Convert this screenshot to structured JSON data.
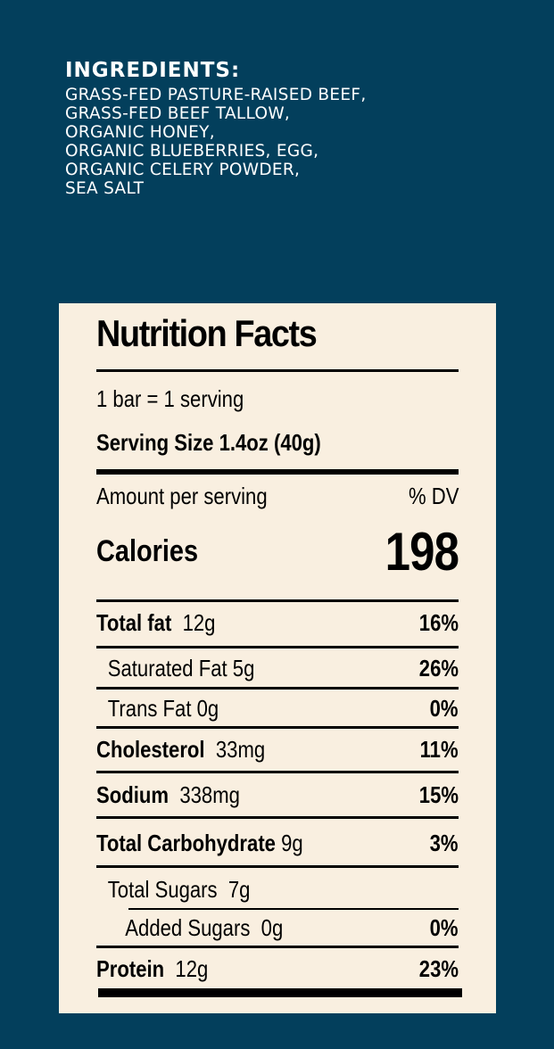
{
  "ingredients": {
    "heading": "INGREDIENTS:",
    "lines": [
      "GRASS-FED PASTURE-RAISED BEEF,",
      "GRASS-FED BEEF TALLOW,",
      "ORGANIC HONEY,",
      "ORGANIC BLUEBERRIES, EGG,",
      "ORGANIC CELERY POWDER,",
      "SEA SALT"
    ]
  },
  "nutrition": {
    "title": "Nutrition Facts",
    "servings": "1 bar = 1 serving",
    "serving_size": "Serving Size 1.4oz (40g)",
    "amount_label": "Amount per serving",
    "dv_label": "% DV",
    "calories_label": "Calories",
    "calories_value": "198",
    "rows": [
      {
        "name": "Total fat",
        "amount": "12g",
        "dv": "16%"
      },
      {
        "name": "Saturated Fat 5g",
        "amount": "",
        "dv": "26%"
      },
      {
        "name": "Trans Fat 0g",
        "amount": "",
        "dv": "0%"
      },
      {
        "name": "Cholesterol",
        "amount": "33mg",
        "dv": "11%"
      },
      {
        "name": "Sodium",
        "amount": "338mg",
        "dv": "15%"
      },
      {
        "name": "Total Carbohydrate",
        "amount": "9g",
        "dv": "3%"
      },
      {
        "name": "Total Sugars",
        "amount": "7g",
        "dv": ""
      },
      {
        "name": "Added Sugars",
        "amount": "0g",
        "dv": "0%"
      },
      {
        "name": "Protein",
        "amount": "12g",
        "dv": "23%"
      }
    ]
  },
  "colors": {
    "background": "#033f5c",
    "panel": "#f9efe0",
    "text": "#000000"
  }
}
